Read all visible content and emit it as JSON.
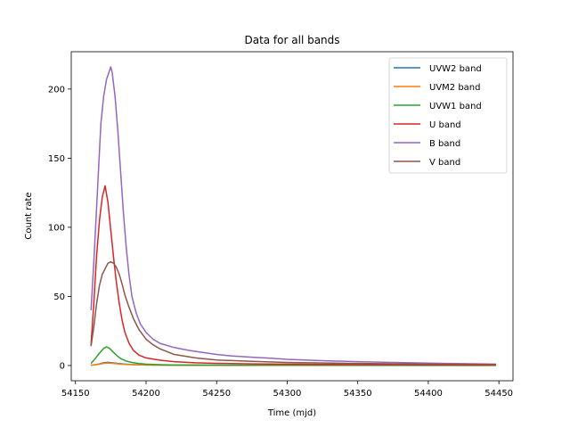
{
  "chart_data": {
    "type": "line",
    "title": "Data for all bands",
    "xlabel": "Time (mjd)",
    "ylabel": "Count rate",
    "xlim": [
      54147,
      54460
    ],
    "ylim": [
      -11,
      227
    ],
    "xticks": [
      54150,
      54200,
      54250,
      54300,
      54350,
      54400,
      54450
    ],
    "yticks": [
      0,
      50,
      100,
      150,
      200
    ],
    "grid": false,
    "legend_position": "top-right",
    "series": [
      {
        "name": "UVW2 band",
        "color": "#1f77b4",
        "x": [
          54161,
          54164,
          54167,
          54170,
          54173,
          54176,
          54180,
          54185,
          54190,
          54200,
          54220,
          54250,
          54300,
          54350,
          54400,
          54448
        ],
        "y": [
          0.2,
          0.6,
          1.2,
          2.0,
          2.3,
          2.0,
          1.5,
          1.0,
          0.7,
          0.4,
          0.25,
          0.2,
          0.15,
          0.12,
          0.1,
          0.1
        ]
      },
      {
        "name": "UVM2 band",
        "color": "#ff7f0e",
        "x": [
          54161,
          54164,
          54167,
          54170,
          54173,
          54176,
          54180,
          54185,
          54190,
          54200,
          54220,
          54250,
          54300,
          54350,
          54400,
          54448
        ],
        "y": [
          0.2,
          0.5,
          1.0,
          1.5,
          1.8,
          1.6,
          1.2,
          0.8,
          0.6,
          0.35,
          0.2,
          0.15,
          0.12,
          0.1,
          0.08,
          0.08
        ]
      },
      {
        "name": "UVW1 band",
        "color": "#2ca02c",
        "x": [
          54161,
          54164,
          54167,
          54170,
          54172,
          54174,
          54176,
          54179,
          54182,
          54186,
          54190,
          54195,
          54200,
          54210,
          54220,
          54250,
          54300,
          54350,
          54400,
          54448
        ],
        "y": [
          1.5,
          5,
          9,
          12.5,
          13.5,
          12.5,
          10.5,
          7.5,
          5,
          3.2,
          2.2,
          1.4,
          1.0,
          0.6,
          0.4,
          0.25,
          0.2,
          0.15,
          0.12,
          0.1
        ]
      },
      {
        "name": "U band",
        "color": "#d62728",
        "x": [
          54161,
          54163,
          54165,
          54167,
          54169,
          54171,
          54173,
          54175,
          54177,
          54179,
          54181,
          54183,
          54185,
          54188,
          54191,
          54195,
          54200,
          54210,
          54220,
          54235,
          54250,
          54275,
          54300,
          54350,
          54400,
          54448
        ],
        "y": [
          15,
          45,
          80,
          105,
          122,
          130,
          118,
          98,
          78,
          60,
          45,
          33,
          24,
          16,
          11,
          7.5,
          5.5,
          3.8,
          2.8,
          2.0,
          1.6,
          1.2,
          1.0,
          0.7,
          0.5,
          0.4
        ]
      },
      {
        "name": "B band",
        "color": "#9467bd",
        "x": [
          54161,
          54163,
          54165,
          54167,
          54168,
          54170,
          54172,
          54174,
          54175,
          54176,
          54178,
          54180,
          54182,
          54184,
          54186,
          54188,
          54190,
          54193,
          54196,
          54200,
          54205,
          54210,
          54220,
          54230,
          54240,
          54250,
          54260,
          54275,
          54290,
          54300,
          54325,
          54350,
          54375,
          54400,
          54425,
          54448
        ],
        "y": [
          40,
          75,
          115,
          155,
          175,
          195,
          207,
          213,
          216,
          212,
          195,
          170,
          140,
          110,
          85,
          65,
          50,
          38,
          30,
          24,
          19,
          16,
          13,
          11,
          9.5,
          8,
          7,
          6,
          5.2,
          4.5,
          3.5,
          2.8,
          2.2,
          1.7,
          1.3,
          1.0
        ]
      },
      {
        "name": "V band",
        "color": "#8c564b",
        "x": [
          54161,
          54163,
          54165,
          54167,
          54169,
          54171,
          54173,
          54175,
          54177,
          54179,
          54181,
          54183,
          54185,
          54188,
          54191,
          54195,
          54200,
          54205,
          54210,
          54220,
          54235,
          54250,
          54275,
          54300,
          54350,
          54400,
          54448
        ],
        "y": [
          14,
          28,
          45,
          58,
          66,
          70,
          74,
          75,
          74,
          71,
          66,
          59,
          51,
          42,
          34,
          26,
          19,
          15,
          12,
          8,
          5.5,
          4,
          3,
          2.2,
          1.5,
          1.0,
          0.8
        ]
      }
    ]
  }
}
